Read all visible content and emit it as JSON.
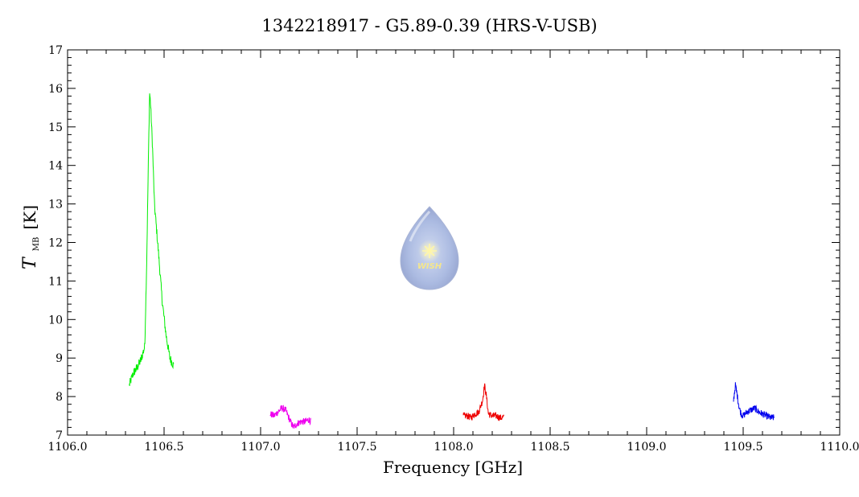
{
  "chart_data": {
    "type": "line",
    "title": "1342218917 - G5.89-0.39 (HRS-V-USB)",
    "xlabel": "Frequency [GHz]",
    "ylabel": "T",
    "ylabel_subscript": "MB",
    "ylabel_unit": "[K]",
    "xlim": [
      1106.0,
      1110.0
    ],
    "ylim": [
      7,
      17
    ],
    "x_ticks": [
      "1106.0",
      "1106.5",
      "1107.0",
      "1107.5",
      "1108.0",
      "1108.5",
      "1109.0",
      "1109.5",
      "1110.0"
    ],
    "y_ticks": [
      "7",
      "8",
      "9",
      "10",
      "11",
      "12",
      "13",
      "14",
      "15",
      "16",
      "17"
    ],
    "grid": false,
    "series": [
      {
        "color": "#00ee00",
        "x": [
          1106.32,
          1106.34,
          1106.36,
          1106.38,
          1106.4,
          1106.41,
          1106.42,
          1106.425,
          1106.43,
          1106.44,
          1106.45,
          1106.47,
          1106.49,
          1106.51,
          1106.53,
          1106.55
        ],
        "y": [
          8.3,
          8.6,
          8.75,
          8.95,
          9.3,
          11.5,
          14.5,
          15.9,
          15.6,
          14.5,
          13.0,
          11.8,
          10.5,
          9.6,
          9.0,
          8.8
        ]
      },
      {
        "color": "#ee00ee",
        "x": [
          1107.05,
          1107.07,
          1107.09,
          1107.11,
          1107.13,
          1107.15,
          1107.17,
          1107.19,
          1107.21,
          1107.23,
          1107.25,
          1107.26
        ],
        "y": [
          7.55,
          7.5,
          7.6,
          7.7,
          7.65,
          7.4,
          7.2,
          7.3,
          7.35,
          7.35,
          7.4,
          7.35
        ]
      },
      {
        "color": "#ee0000",
        "x": [
          1108.05,
          1108.07,
          1108.09,
          1108.11,
          1108.13,
          1108.15,
          1108.16,
          1108.17,
          1108.18,
          1108.2,
          1108.22,
          1108.24,
          1108.26
        ],
        "y": [
          7.5,
          7.5,
          7.45,
          7.55,
          7.6,
          7.9,
          8.3,
          8.0,
          7.55,
          7.5,
          7.5,
          7.45,
          7.45
        ]
      },
      {
        "color": "#0000ee",
        "x": [
          1109.45,
          1109.46,
          1109.47,
          1109.48,
          1109.49,
          1109.5,
          1109.52,
          1109.54,
          1109.56,
          1109.58,
          1109.6,
          1109.62,
          1109.64,
          1109.66
        ],
        "y": [
          7.9,
          8.3,
          8.0,
          7.7,
          7.55,
          7.5,
          7.6,
          7.65,
          7.7,
          7.6,
          7.55,
          7.5,
          7.45,
          7.45
        ]
      }
    ]
  },
  "logo": {
    "text": "WISH",
    "star_icon": "star-icon"
  }
}
